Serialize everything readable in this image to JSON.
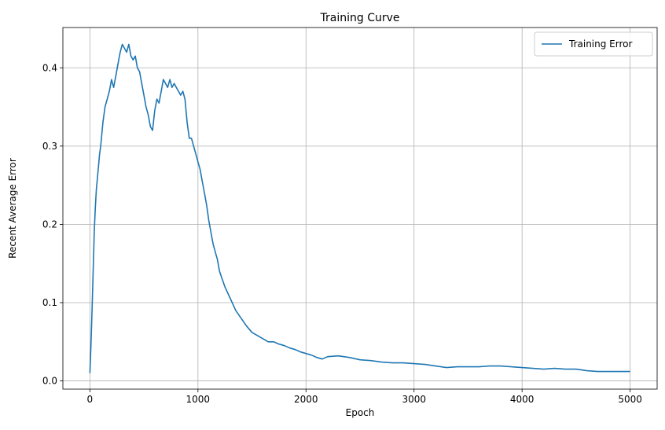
{
  "chart_data": {
    "type": "line",
    "title": "Training Curve",
    "xlabel": "Epoch",
    "ylabel": "Recent Average Error",
    "xlim": [
      -250,
      5250
    ],
    "ylim": [
      -0.0105,
      0.4515
    ],
    "xticks": [
      0,
      1000,
      2000,
      3000,
      4000,
      5000
    ],
    "yticks": [
      0.0,
      0.1,
      0.2,
      0.3,
      0.4
    ],
    "xtick_labels": [
      "0",
      "1000",
      "2000",
      "3000",
      "4000",
      "5000"
    ],
    "ytick_labels": [
      "0.0",
      "0.1",
      "0.2",
      "0.3",
      "0.4"
    ],
    "grid": true,
    "legend": {
      "position": "upper-right",
      "entries": [
        "Training Error"
      ]
    },
    "colors": {
      "series": "#1f77b4"
    },
    "series": [
      {
        "name": "Training Error",
        "x": [
          0,
          10,
          20,
          30,
          40,
          50,
          60,
          70,
          80,
          90,
          100,
          120,
          140,
          160,
          180,
          200,
          220,
          240,
          260,
          280,
          300,
          320,
          340,
          360,
          380,
          400,
          420,
          440,
          460,
          480,
          500,
          520,
          540,
          560,
          580,
          600,
          620,
          640,
          660,
          680,
          700,
          720,
          740,
          760,
          780,
          800,
          820,
          840,
          860,
          880,
          900,
          920,
          940,
          960,
          980,
          1000,
          1020,
          1040,
          1060,
          1080,
          1100,
          1120,
          1140,
          1160,
          1180,
          1200,
          1250,
          1300,
          1350,
          1400,
          1450,
          1500,
          1550,
          1600,
          1650,
          1700,
          1750,
          1800,
          1850,
          1900,
          1950,
          2000,
          2050,
          2100,
          2150,
          2200,
          2300,
          2400,
          2500,
          2600,
          2700,
          2800,
          2900,
          3000,
          3100,
          3200,
          3300,
          3400,
          3500,
          3600,
          3700,
          3800,
          3900,
          4000,
          4100,
          4200,
          4300,
          4400,
          4500,
          4600,
          4700,
          4800,
          4900,
          5000
        ],
        "y": [
          0.01,
          0.045,
          0.09,
          0.14,
          0.19,
          0.22,
          0.245,
          0.26,
          0.275,
          0.29,
          0.3,
          0.33,
          0.35,
          0.36,
          0.37,
          0.385,
          0.375,
          0.39,
          0.405,
          0.42,
          0.43,
          0.425,
          0.42,
          0.43,
          0.415,
          0.41,
          0.415,
          0.4,
          0.395,
          0.38,
          0.365,
          0.35,
          0.34,
          0.325,
          0.32,
          0.345,
          0.36,
          0.355,
          0.37,
          0.385,
          0.38,
          0.375,
          0.385,
          0.375,
          0.38,
          0.375,
          0.37,
          0.365,
          0.37,
          0.36,
          0.33,
          0.31,
          0.31,
          0.3,
          0.29,
          0.28,
          0.27,
          0.255,
          0.24,
          0.225,
          0.205,
          0.19,
          0.175,
          0.165,
          0.155,
          0.14,
          0.12,
          0.105,
          0.09,
          0.08,
          0.07,
          0.062,
          0.058,
          0.054,
          0.05,
          0.05,
          0.047,
          0.045,
          0.042,
          0.04,
          0.037,
          0.035,
          0.033,
          0.03,
          0.028,
          0.031,
          0.032,
          0.03,
          0.027,
          0.026,
          0.024,
          0.023,
          0.023,
          0.022,
          0.021,
          0.019,
          0.017,
          0.018,
          0.018,
          0.018,
          0.019,
          0.019,
          0.018,
          0.017,
          0.016,
          0.015,
          0.016,
          0.015,
          0.015,
          0.013,
          0.012,
          0.012,
          0.012,
          0.012
        ]
      }
    ]
  }
}
